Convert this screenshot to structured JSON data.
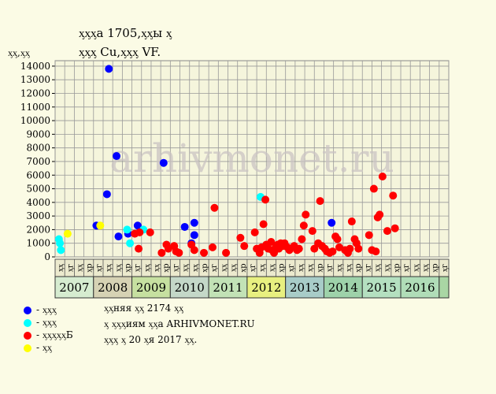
{
  "title_line1": "ᶍᶍᶍа 1705,ᶍᶍы ᶍ",
  "title_line2": "ᶍᶍᶍ Cu,ᶍᶍᶍ VF.",
  "watermark": "arhivmonet.ru",
  "notes": [
    "ᶍᶍняя ᶍᶍ 2174 ᶍᶍ",
    "ᶍ ᶍᶍᶍиям ᶍᶍа ARHIVMONET.RU",
    "ᶍᶍᶍ ᶍ 20 ᶍя 2017 ᶍᶍ."
  ],
  "legend": [
    {
      "label": "- ᶍᶍᶍ",
      "color": "#0000ff"
    },
    {
      "label": "- ᶍᶍᶍ",
      "color": "#00ffff"
    },
    {
      "label": "- ᶍᶍᶍᶍᶍБ",
      "color": "#ff0000"
    },
    {
      "label": "- ᶍᶍ",
      "color": "#ffff00"
    }
  ],
  "chart_data": {
    "type": "scatter",
    "title": "ᶍᶍᶍа 1705,ᶍᶍы ᶍ ᶍᶍᶍ Cu,ᶍᶍᶍ VF.",
    "ylabel": "ᶍᶍ,ᶍᶍ",
    "ylim": [
      0,
      14400
    ],
    "yticks": [
      0,
      1000,
      2000,
      3000,
      4000,
      5000,
      6000,
      7000,
      8000,
      9000,
      10000,
      11000,
      12000,
      13000,
      14000
    ],
    "grid": true,
    "quarter_labels": [
      "ᶍᶍ",
      "ᶍг",
      "ᶍᶍ",
      "ᶍр",
      "ᶍг",
      "ᶍᶍ",
      "ᶍᶍ",
      "ᶍр",
      "ᶍг",
      "ᶍᶍ",
      "ᶍᶍ",
      "ᶍр",
      "ᶍг",
      "ᶍᶍ",
      "ᶍᶍ",
      "ᶍр",
      "ᶍг",
      "ᶍᶍ",
      "ᶍᶍ",
      "ᶍр",
      "ᶍг",
      "ᶍᶍ",
      "ᶍᶍ",
      "ᶍр",
      "ᶍг",
      "ᶍᶍ",
      "ᶍᶍ",
      "ᶍр",
      "ᶍг",
      "ᶍᶍ",
      "ᶍᶍ",
      "ᶍр",
      "ᶍг",
      "ᶍᶍ",
      "ᶍᶍ",
      "ᶍр",
      "ᶍг",
      "ᶍᶍ",
      "ᶍᶍ",
      "ᶍр",
      "ᶍг"
    ],
    "years": [
      {
        "label": "2007",
        "color": "#d6ecd0"
      },
      {
        "label": "2008",
        "color": "#d6d2b4"
      },
      {
        "label": "2009",
        "color": "#c6e0a0"
      },
      {
        "label": "2010",
        "color": "#c4d8c8"
      },
      {
        "label": "2011",
        "color": "#c2e2b6"
      },
      {
        "label": "2012",
        "color": "#e8f080"
      },
      {
        "label": "2013",
        "color": "#a8ccc8"
      },
      {
        "label": "2014",
        "color": "#9ed2aa"
      },
      {
        "label": "2015",
        "color": "#b4e0c0"
      },
      {
        "label": "2016",
        "color": "#b0ddb8"
      },
      {
        "label": "",
        "color": "#a9d6a4"
      }
    ],
    "series": [
      {
        "color": "#0000ff",
        "points": [
          [
            4.3,
            2300
          ],
          [
            5.4,
            4600
          ],
          [
            5.6,
            13800
          ],
          [
            6.4,
            7400
          ],
          [
            6.6,
            1500
          ],
          [
            7.6,
            1700
          ],
          [
            8.6,
            2300
          ],
          [
            11.3,
            6900
          ],
          [
            13.5,
            2200
          ],
          [
            14.2,
            1000
          ],
          [
            14.5,
            2500
          ],
          [
            14.5,
            1600
          ],
          [
            28.8,
            2500
          ]
        ]
      },
      {
        "color": "#00ffff",
        "points": [
          [
            0.4,
            1300
          ],
          [
            0.5,
            1000
          ],
          [
            0.6,
            500
          ],
          [
            7.5,
            2000
          ],
          [
            7.8,
            1000
          ],
          [
            9.2,
            2000
          ],
          [
            21.4,
            4400
          ]
        ]
      },
      {
        "color": "#ffff00",
        "points": [
          [
            1.3,
            1700
          ],
          [
            4.7,
            2300
          ]
        ]
      },
      {
        "color": "#ff0000",
        "points": [
          [
            8.3,
            1700
          ],
          [
            8.7,
            600
          ],
          [
            8.8,
            1800
          ],
          [
            9.9,
            1800
          ],
          [
            11.1,
            300
          ],
          [
            11.6,
            900
          ],
          [
            11.8,
            600
          ],
          [
            12.4,
            800
          ],
          [
            12.6,
            400
          ],
          [
            12.9,
            300
          ],
          [
            14.2,
            900
          ],
          [
            14.5,
            500
          ],
          [
            15.5,
            300
          ],
          [
            16.4,
            700
          ],
          [
            16.6,
            3600
          ],
          [
            17.8,
            300
          ],
          [
            19.3,
            1400
          ],
          [
            19.7,
            800
          ],
          [
            20.8,
            1800
          ],
          [
            21.0,
            600
          ],
          [
            21.3,
            300
          ],
          [
            21.5,
            700
          ],
          [
            21.7,
            2400
          ],
          [
            21.9,
            4200
          ],
          [
            22.0,
            900
          ],
          [
            22.2,
            600
          ],
          [
            22.5,
            1100
          ],
          [
            22.6,
            500
          ],
          [
            22.8,
            300
          ],
          [
            23.0,
            700
          ],
          [
            23.2,
            900
          ],
          [
            23.3,
            600
          ],
          [
            23.5,
            1000
          ],
          [
            23.7,
            800
          ],
          [
            23.9,
            1000
          ],
          [
            24.2,
            700
          ],
          [
            24.4,
            500
          ],
          [
            24.9,
            800
          ],
          [
            25.2,
            500
          ],
          [
            25.4,
            600
          ],
          [
            25.7,
            1300
          ],
          [
            25.9,
            2300
          ],
          [
            26.1,
            3100
          ],
          [
            26.8,
            1900
          ],
          [
            27.0,
            600
          ],
          [
            27.4,
            1000
          ],
          [
            27.6,
            4100
          ],
          [
            27.8,
            800
          ],
          [
            28.1,
            600
          ],
          [
            28.3,
            400
          ],
          [
            28.6,
            300
          ],
          [
            28.9,
            400
          ],
          [
            29.2,
            1500
          ],
          [
            29.4,
            1300
          ],
          [
            29.6,
            700
          ],
          [
            30.2,
            500
          ],
          [
            30.5,
            300
          ],
          [
            30.7,
            600
          ],
          [
            30.9,
            2600
          ],
          [
            31.2,
            1300
          ],
          [
            31.4,
            1000
          ],
          [
            31.6,
            600
          ],
          [
            32.7,
            1600
          ],
          [
            33.0,
            500
          ],
          [
            33.2,
            5000
          ],
          [
            33.4,
            400
          ],
          [
            33.6,
            2900
          ],
          [
            33.8,
            3100
          ],
          [
            34.1,
            5900
          ],
          [
            34.6,
            1900
          ],
          [
            35.2,
            4500
          ],
          [
            35.4,
            2100
          ]
        ]
      }
    ]
  }
}
